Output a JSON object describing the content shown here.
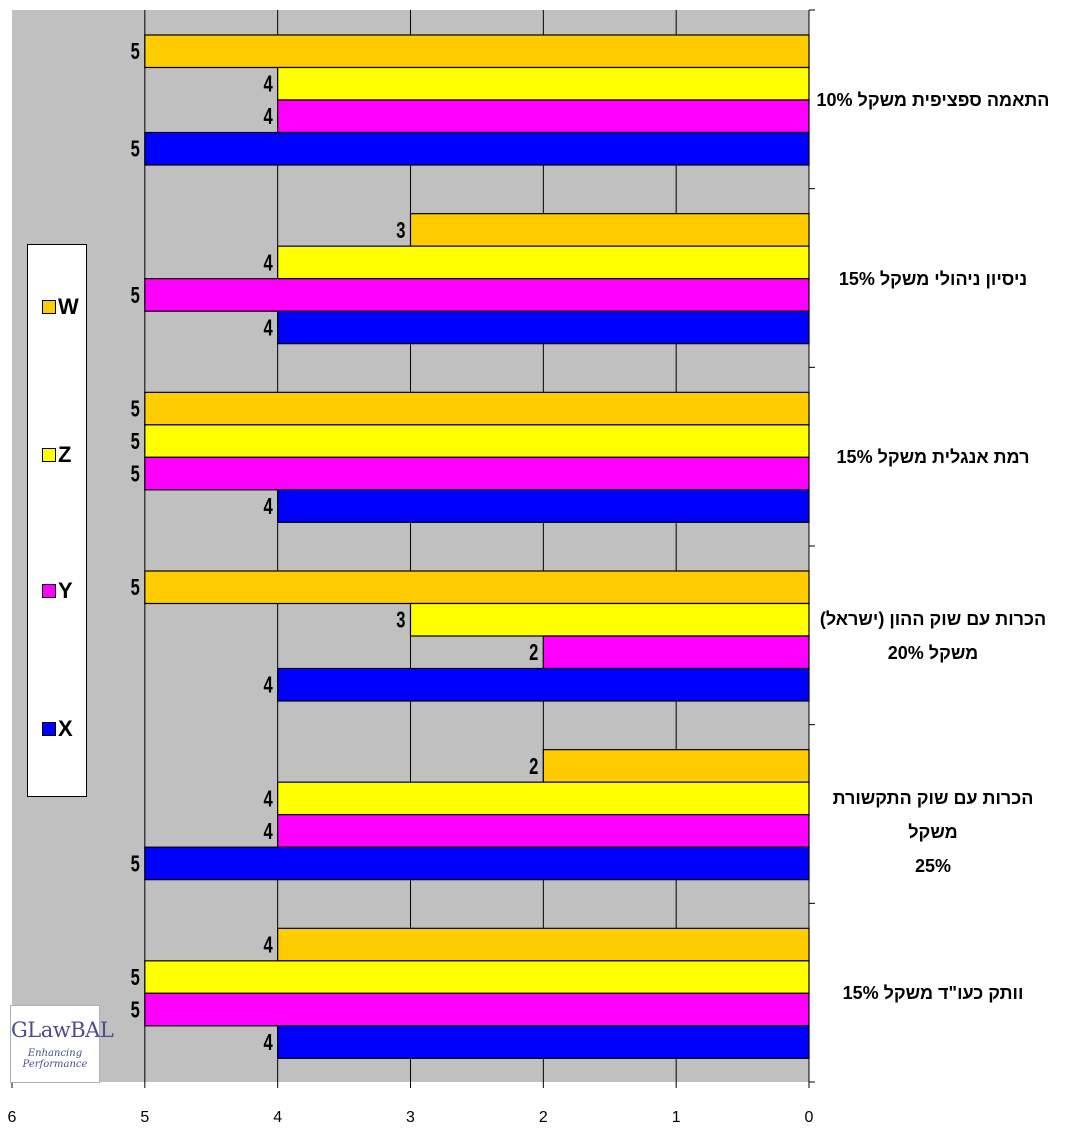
{
  "chart_data": {
    "type": "bar",
    "orientation": "horizontal",
    "x_reversed": true,
    "xlim": [
      0,
      6
    ],
    "xticks": [
      "0",
      "1",
      "2",
      "3",
      "4",
      "5",
      "6"
    ],
    "grid": true,
    "legend_position": "left",
    "categories": [
      [
        "התאמה ספציפית משקל 10%"
      ],
      [
        "ניסיון ניהולי משקל 15%"
      ],
      [
        "רמת אנגלית משקל 15%"
      ],
      [
        "הכרות עם שוק ההון  (ישראל)",
        "משקל 20%"
      ],
      [
        "הכרות עם שוק התקשורת משקל",
        "25%"
      ],
      [
        "וותק כעו\"ד משקל 15%"
      ]
    ],
    "series": [
      {
        "name": "W",
        "color": "#FFCC00",
        "values": [
          5,
          3,
          5,
          5,
          2,
          4
        ]
      },
      {
        "name": "Z",
        "color": "#FFFF00",
        "values": [
          4,
          4,
          5,
          3,
          4,
          5
        ]
      },
      {
        "name": "Y",
        "color": "#FF00FF",
        "values": [
          4,
          5,
          5,
          2,
          4,
          5
        ]
      },
      {
        "name": "X",
        "color": "#0000FF",
        "values": [
          5,
          4,
          4,
          4,
          5,
          4
        ]
      }
    ],
    "data_labels": true
  },
  "legend": {
    "items": [
      {
        "label": "W",
        "color": "#FFCC00"
      },
      {
        "label": "Z",
        "color": "#FFFF00"
      },
      {
        "label": "Y",
        "color": "#FF00FF"
      },
      {
        "label": "X",
        "color": "#0000FF"
      }
    ]
  },
  "logo": {
    "main": "GLawBAL",
    "sub": "Enhancing Performance"
  },
  "colors": {
    "plot_background": "#C0C0C0",
    "border": "#000000"
  }
}
